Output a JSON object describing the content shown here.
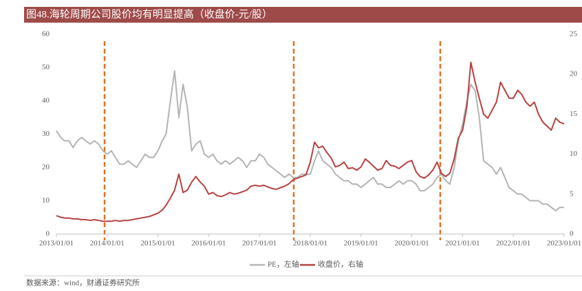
{
  "chart_data": {
    "type": "line",
    "title": "图48.海轮周期公司股价均有明显提高（收盘价-元/股）",
    "source": "数据来源：wind，财通证券研究所",
    "x": [
      "2013/01/01",
      "2013/02/01",
      "2013/03/01",
      "2013/04/01",
      "2013/05/01",
      "2013/06/01",
      "2013/07/01",
      "2013/08/01",
      "2013/09/01",
      "2013/10/01",
      "2013/11/01",
      "2013/12/01",
      "2014/01/01",
      "2014/02/01",
      "2014/03/01",
      "2014/04/01",
      "2014/05/01",
      "2014/06/01",
      "2014/07/01",
      "2014/08/01",
      "2014/09/01",
      "2014/10/01",
      "2014/11/01",
      "2014/12/01",
      "2015/01/01",
      "2015/02/01",
      "2015/03/01",
      "2015/04/01",
      "2015/05/01",
      "2015/06/01",
      "2015/07/01",
      "2015/08/01",
      "2015/09/01",
      "2015/10/01",
      "2015/11/01",
      "2015/12/01",
      "2016/01/01",
      "2016/02/01",
      "2016/03/01",
      "2016/04/01",
      "2016/05/01",
      "2016/06/01",
      "2016/07/01",
      "2016/08/01",
      "2016/09/01",
      "2016/10/01",
      "2016/11/01",
      "2016/12/01",
      "2017/01/01",
      "2017/02/01",
      "2017/03/01",
      "2017/04/01",
      "2017/05/01",
      "2017/06/01",
      "2017/07/01",
      "2017/08/01",
      "2017/09/01",
      "2017/10/01",
      "2017/11/01",
      "2017/12/01",
      "2018/01/01",
      "2018/02/01",
      "2018/03/01",
      "2018/04/01",
      "2018/05/01",
      "2018/06/01",
      "2018/07/01",
      "2018/08/01",
      "2018/09/01",
      "2018/10/01",
      "2018/11/01",
      "2018/12/01",
      "2019/01/01",
      "2019/02/01",
      "2019/03/01",
      "2019/04/01",
      "2019/05/01",
      "2019/06/01",
      "2019/07/01",
      "2019/08/01",
      "2019/09/01",
      "2019/10/01",
      "2019/11/01",
      "2019/12/01",
      "2020/01/01",
      "2020/02/01",
      "2020/03/01",
      "2020/04/01",
      "2020/05/01",
      "2020/06/01",
      "2020/07/01",
      "2020/08/01",
      "2020/09/01",
      "2020/10/01",
      "2020/11/01",
      "2020/12/01",
      "2021/01/01",
      "2021/02/01",
      "2021/03/01",
      "2021/04/01",
      "2021/05/01",
      "2021/06/01",
      "2021/07/01",
      "2021/08/01",
      "2021/09/01",
      "2021/10/01",
      "2021/11/01",
      "2021/12/01",
      "2022/01/01",
      "2022/02/01",
      "2022/03/01",
      "2022/04/01",
      "2022/05/01",
      "2022/06/01",
      "2022/07/01",
      "2022/08/01",
      "2022/09/01",
      "2022/10/01",
      "2022/11/01",
      "2022/12/01",
      "2023/01/01"
    ],
    "series": [
      {
        "name": "PE，左轴",
        "color": "#b3b3b3",
        "values": [
          31,
          29,
          28,
          28,
          26,
          28,
          29,
          28,
          27,
          28,
          27,
          25,
          24,
          25,
          23,
          21,
          21,
          22,
          21,
          20,
          22,
          24,
          23,
          23,
          25,
          28,
          30,
          40,
          49,
          35,
          45,
          38,
          25,
          27,
          28,
          24,
          23,
          24,
          22,
          21,
          22,
          21,
          22,
          23,
          22,
          20,
          22,
          22,
          24,
          23,
          21,
          20,
          19,
          18,
          17,
          18,
          17,
          17,
          18,
          18,
          18,
          22,
          25,
          22,
          21,
          20,
          18,
          17,
          16,
          16,
          15,
          15,
          14,
          15,
          16,
          17,
          15,
          15,
          14,
          14,
          15,
          16,
          15,
          16,
          16,
          15,
          13,
          13,
          14,
          15,
          17,
          18,
          16,
          15,
          20,
          28,
          33,
          40,
          45,
          43,
          35,
          22,
          21,
          20,
          18,
          20,
          17,
          14,
          13,
          12,
          12,
          11,
          10,
          10,
          10,
          9,
          9,
          8,
          7,
          8,
          8
        ]
      },
      {
        "name": "收盘价，右轴",
        "color": "#b5403f",
        "axis": "y2",
        "values": [
          2.3,
          2.1,
          2.0,
          2.0,
          1.9,
          1.9,
          1.8,
          1.8,
          1.7,
          1.8,
          1.7,
          1.6,
          1.6,
          1.6,
          1.7,
          1.6,
          1.7,
          1.7,
          1.8,
          1.9,
          2.0,
          2.1,
          2.2,
          2.4,
          2.6,
          3.0,
          3.6,
          4.5,
          5.5,
          7.5,
          5.2,
          5.5,
          6.5,
          7.2,
          6.5,
          6.0,
          5.0,
          5.2,
          4.8,
          4.7,
          4.9,
          5.2,
          5.0,
          5.1,
          5.3,
          5.5,
          6.0,
          6.1,
          6.0,
          6.1,
          5.9,
          5.7,
          5.6,
          5.8,
          6.0,
          6.3,
          6.8,
          7.0,
          7.2,
          7.4,
          9.0,
          11.5,
          10.8,
          11.0,
          10.2,
          9.5,
          8.4,
          8.6,
          9.0,
          8.2,
          8.3,
          8.0,
          8.4,
          9.4,
          9.0,
          8.5,
          8.0,
          8.2,
          9.2,
          8.6,
          8.5,
          8.2,
          8.6,
          9.0,
          9.2,
          7.8,
          7.2,
          7.0,
          7.4,
          8.0,
          9.0,
          7.6,
          7.2,
          7.6,
          9.4,
          12.0,
          13.0,
          16.0,
          21.5,
          19.0,
          17.0,
          15.0,
          14.5,
          15.5,
          16.5,
          19.0,
          18.0,
          17.0,
          17.0,
          18.0,
          17.5,
          16.5,
          16.0,
          16.5,
          15.0,
          14.0,
          13.5,
          13.0,
          14.5,
          14.0,
          13.8
        ]
      }
    ],
    "xlim": [
      "2013/01/01",
      "2023/01/01"
    ],
    "xticks": [
      "2013/01/01",
      "2014/01/01",
      "2015/01/01",
      "2016/01/01",
      "2017/01/01",
      "2018/01/01",
      "2019/01/01",
      "2020/01/01",
      "2021/01/01",
      "2022/01/01",
      "2023/01/01"
    ],
    "ylim": [
      0,
      60
    ],
    "yticks": [
      0,
      10,
      20,
      30,
      40,
      50,
      60
    ],
    "y2lim": [
      0,
      25
    ],
    "y2ticks": [
      0,
      5,
      10,
      15,
      20,
      25
    ],
    "legend": "bottom"
  }
}
